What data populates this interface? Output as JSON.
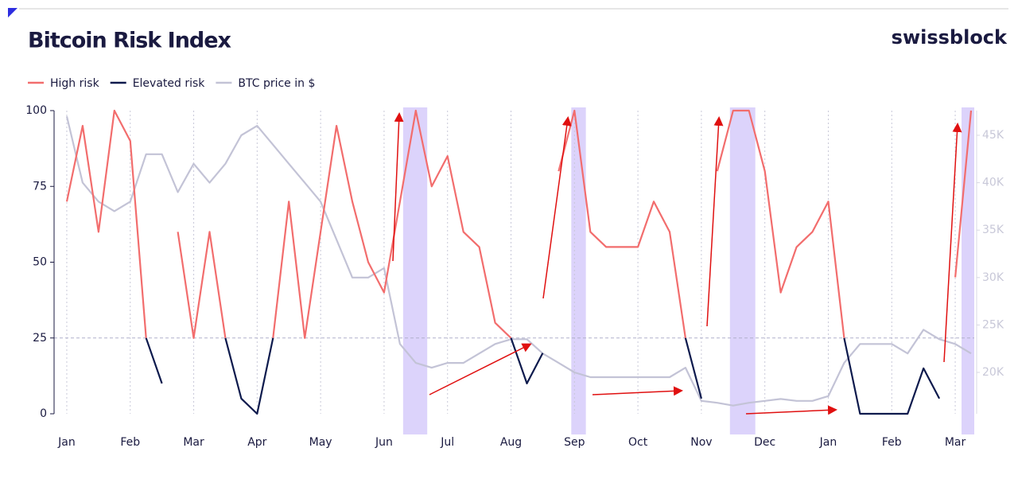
{
  "chart_data": {
    "type": "line",
    "title": "Bitcoin Risk Index",
    "brand": "swissblock",
    "x": [
      0,
      0.25,
      0.5,
      0.75,
      1,
      1.25,
      1.5,
      1.75,
      2,
      2.25,
      2.5,
      2.75,
      3,
      3.25,
      3.5,
      3.75,
      4,
      4.25,
      4.5,
      4.75,
      5,
      5.25,
      5.5,
      5.75,
      6,
      6.25,
      6.5,
      6.75,
      7,
      7.25,
      7.5,
      7.75,
      8,
      8.25,
      8.5,
      8.75,
      9,
      9.25,
      9.5,
      9.75,
      10,
      10.25,
      10.5,
      10.75,
      11,
      11.25,
      11.5,
      11.75,
      12,
      12.25,
      12.5,
      12.75,
      13,
      13.25,
      13.5,
      13.75,
      14,
      14.25
    ],
    "series": [
      {
        "name": "High risk",
        "color": "#f26d6d",
        "axis": "y",
        "values": [
          70,
          95,
          60,
          100,
          90,
          25,
          null,
          60,
          25,
          60,
          25,
          null,
          null,
          25,
          70,
          25,
          60,
          95,
          70,
          50,
          40,
          70,
          100,
          75,
          85,
          60,
          55,
          30,
          25,
          null,
          null,
          80,
          100,
          60,
          55,
          55,
          55,
          70,
          60,
          25,
          null,
          80,
          100,
          100,
          80,
          40,
          55,
          60,
          70,
          25,
          null,
          null,
          null,
          null,
          null,
          null,
          45,
          100
        ]
      },
      {
        "name": "Elevated risk",
        "color": "#0d1a4d",
        "axis": "y",
        "values": [
          null,
          null,
          null,
          null,
          null,
          25,
          10,
          null,
          25,
          null,
          25,
          5,
          0,
          25,
          null,
          25,
          null,
          null,
          null,
          null,
          null,
          null,
          null,
          null,
          null,
          null,
          null,
          null,
          25,
          10,
          20,
          null,
          null,
          null,
          null,
          null,
          null,
          null,
          null,
          25,
          5,
          null,
          null,
          null,
          null,
          null,
          null,
          null,
          null,
          25,
          0,
          0,
          0,
          0,
          15,
          5,
          null,
          null
        ]
      },
      {
        "name": "BTC price in $",
        "color": "#c3c3d6",
        "axis": "y2",
        "values": [
          47000,
          40000,
          38000,
          37000,
          38000,
          43000,
          43000,
          39000,
          42000,
          40000,
          42000,
          45000,
          46000,
          44000,
          42000,
          40000,
          38000,
          34000,
          30000,
          30000,
          31000,
          23000,
          21000,
          20500,
          21000,
          21000,
          22000,
          23000,
          23500,
          23500,
          22000,
          21000,
          20000,
          19500,
          19500,
          19500,
          19500,
          19500,
          19500,
          20500,
          17000,
          16800,
          16500,
          16800,
          17000,
          17200,
          17000,
          17000,
          17500,
          21000,
          23000,
          23000,
          23000,
          22000,
          24500,
          23500,
          23000,
          22000
        ]
      }
    ],
    "xlim": [
      -0.2,
      14.3
    ],
    "xticks": [
      {
        "value": 0,
        "label": "Jan"
      },
      {
        "value": 1,
        "label": "Feb"
      },
      {
        "value": 2,
        "label": "Mar"
      },
      {
        "value": 3,
        "label": "Apr"
      },
      {
        "value": 4,
        "label": "May"
      },
      {
        "value": 5,
        "label": "Jun"
      },
      {
        "value": 6,
        "label": "Jul"
      },
      {
        "value": 7,
        "label": "Aug"
      },
      {
        "value": 8,
        "label": "Sep"
      },
      {
        "value": 9,
        "label": "Oct"
      },
      {
        "value": 10,
        "label": "Nov"
      },
      {
        "value": 11,
        "label": "Dec"
      },
      {
        "value": 12,
        "label": "Jan"
      },
      {
        "value": 13,
        "label": "Feb"
      },
      {
        "value": 14,
        "label": "Mar"
      }
    ],
    "ylim": [
      0,
      100
    ],
    "yticks": [
      0,
      25,
      50,
      75,
      100
    ],
    "y2lim": [
      15640,
      47600
    ],
    "y2ticks": [
      {
        "value": 20000,
        "label": "20K"
      },
      {
        "value": 25000,
        "label": "25K"
      },
      {
        "value": 30000,
        "label": "30K"
      },
      {
        "value": 35000,
        "label": "35K"
      },
      {
        "value": 40000,
        "label": "40K"
      },
      {
        "value": 45000,
        "label": "45K"
      }
    ],
    "threshold": 25,
    "shaded_ranges": [
      [
        5.3,
        5.68
      ],
      [
        7.95,
        8.18
      ],
      [
        10.45,
        10.85
      ],
      [
        14.1,
        14.3
      ]
    ],
    "shade_color": "#dcd3fb",
    "legend": "top-left"
  }
}
